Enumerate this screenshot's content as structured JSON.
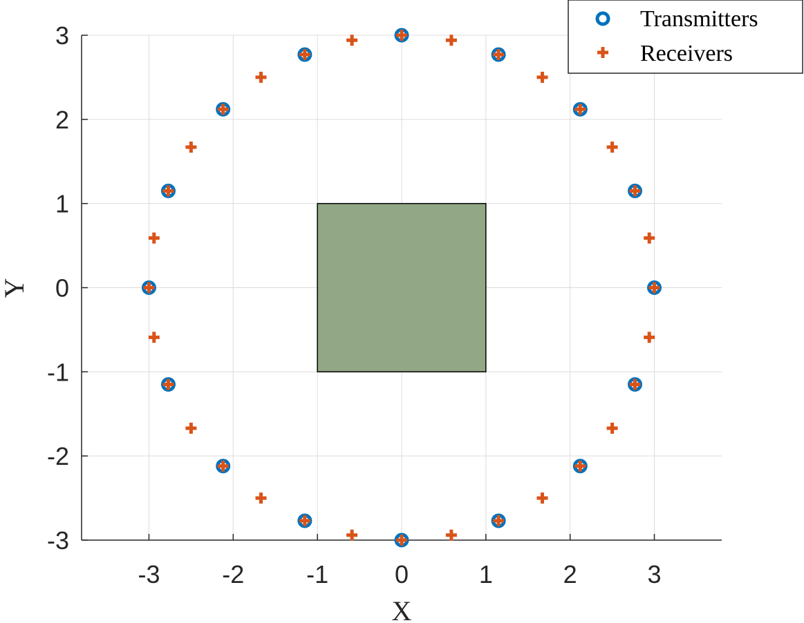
{
  "chart_data": {
    "type": "scatter",
    "xlabel": "X",
    "ylabel": "Y",
    "xlim": [
      -3.8,
      3.8
    ],
    "ylim": [
      -3,
      3
    ],
    "xticks": [
      -3,
      -2,
      -1,
      0,
      1,
      2,
      3
    ],
    "yticks": [
      -3,
      -2,
      -1,
      0,
      1,
      2,
      3
    ],
    "grid": true,
    "legend_placement": "top-right",
    "series": [
      {
        "name": "Transmitters",
        "marker": "circle",
        "color": "#0072BD",
        "x": [
          3,
          2.77,
          2.12,
          1.15,
          0,
          -1.15,
          -2.12,
          -2.77,
          -3,
          -2.77,
          -2.12,
          -1.15,
          0,
          1.15,
          2.12,
          2.77
        ],
        "y": [
          0,
          1.15,
          2.12,
          2.77,
          3,
          2.77,
          2.12,
          1.15,
          0,
          -1.15,
          -2.12,
          -2.77,
          -3,
          -2.77,
          -2.12,
          -1.15
        ]
      },
      {
        "name": "Receivers",
        "marker": "plus",
        "color": "#D95319",
        "x": [
          3,
          2.94,
          2.77,
          2.5,
          2.12,
          1.67,
          1.15,
          0.59,
          0,
          -0.59,
          -1.15,
          -1.67,
          -2.12,
          -2.5,
          -2.77,
          -2.94,
          -3,
          -2.94,
          -2.77,
          -2.5,
          -2.12,
          -1.67,
          -1.15,
          -0.59,
          0,
          0.59,
          1.15,
          1.67,
          2.12,
          2.5,
          2.77,
          2.94
        ],
        "y": [
          0,
          0.59,
          1.15,
          1.67,
          2.12,
          2.5,
          2.77,
          2.94,
          3,
          2.94,
          2.77,
          2.5,
          2.12,
          1.67,
          1.15,
          0.59,
          0,
          -0.59,
          -1.15,
          -1.67,
          -2.12,
          -2.5,
          -2.77,
          -2.94,
          -3,
          -2.94,
          -2.77,
          -2.5,
          -2.12,
          -1.67,
          -1.15,
          -0.59
        ]
      }
    ],
    "shapes": [
      {
        "type": "rectangle",
        "x": [
          -1,
          1
        ],
        "y": [
          -1,
          1
        ],
        "fill": "#91A785",
        "edge": "#000000"
      }
    ]
  }
}
